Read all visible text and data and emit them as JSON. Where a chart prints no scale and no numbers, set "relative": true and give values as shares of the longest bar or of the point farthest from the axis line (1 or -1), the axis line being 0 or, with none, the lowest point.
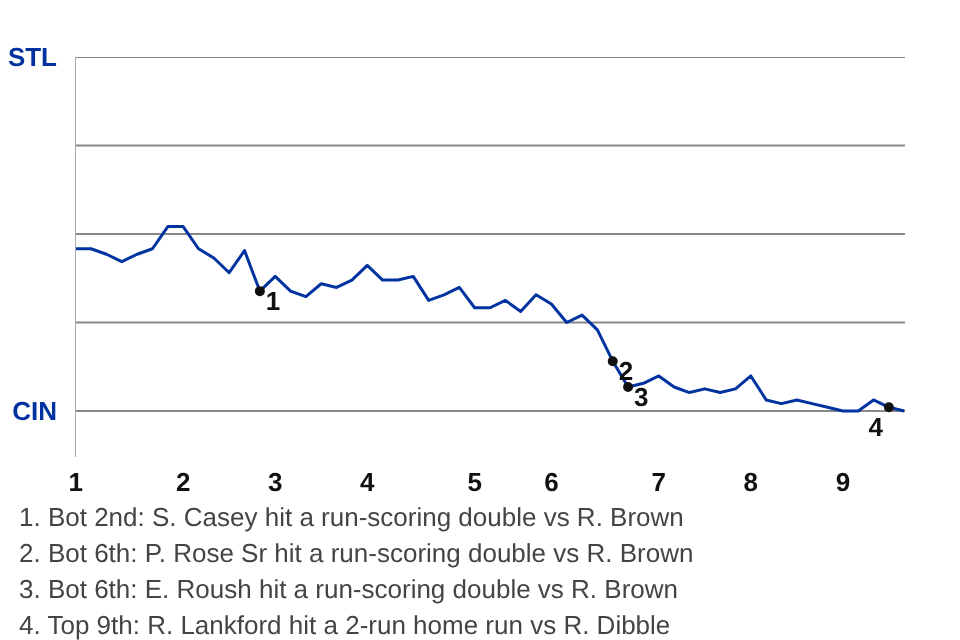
{
  "chart_data": {
    "type": "line",
    "relative": true,
    "categories": [
      "1",
      null,
      null,
      null,
      null,
      null,
      null,
      "2",
      null,
      null,
      null,
      null,
      null,
      "3",
      null,
      null,
      null,
      null,
      null,
      "4",
      null,
      null,
      null,
      null,
      null,
      null,
      "5",
      null,
      null,
      null,
      null,
      "6",
      null,
      null,
      null,
      null,
      null,
      null,
      "7",
      null,
      null,
      null,
      null,
      null,
      "8",
      null,
      null,
      null,
      null,
      null,
      "9",
      null,
      null,
      null,
      null
    ],
    "series": [
      {
        "color": "#0033a0",
        "values": [
          0.88,
          0.88,
          0.85,
          0.81,
          0.85,
          0.88,
          1,
          1,
          0.88,
          0.83,
          0.75,
          0.87,
          0.65,
          0.73,
          0.65,
          0.62,
          0.69,
          0.67,
          0.71,
          0.79,
          0.71,
          0.71,
          0.73,
          0.6,
          0.63,
          0.67,
          0.56,
          0.56,
          0.6,
          0.54,
          0.63,
          0.58,
          0.48,
          0.52,
          0.44,
          0.27,
          0.13,
          0.15,
          0.19,
          0.13,
          0.1,
          0.12,
          0.1,
          0.12,
          0.19,
          0.06,
          0.04,
          0.06,
          0.04,
          0.02,
          0,
          0,
          0.06,
          0.02,
          0
        ]
      },
      {
        "type": "scatter",
        "marker": "circle",
        "name": "1",
        "color": "#111111",
        "values": [
          null,
          null,
          null,
          null,
          null,
          null,
          null,
          null,
          null,
          null,
          null,
          null,
          0.65,
          null,
          null,
          null,
          null,
          null,
          null,
          null,
          null,
          null,
          null,
          null,
          null,
          null,
          null,
          null,
          null,
          null,
          null,
          null,
          null,
          null,
          null,
          null,
          null,
          null,
          null,
          null,
          null,
          null,
          null,
          null,
          null,
          null,
          null,
          null,
          null,
          null,
          null,
          null,
          null,
          null,
          null
        ]
      },
      {
        "type": "scatter",
        "marker": "circle",
        "name": "2",
        "color": "#111111",
        "values": [
          null,
          null,
          null,
          null,
          null,
          null,
          null,
          null,
          null,
          null,
          null,
          null,
          null,
          null,
          null,
          null,
          null,
          null,
          null,
          null,
          null,
          null,
          null,
          null,
          null,
          null,
          null,
          null,
          null,
          null,
          null,
          null,
          null,
          null,
          null,
          0.27,
          null,
          null,
          null,
          null,
          null,
          null,
          null,
          null,
          null,
          null,
          null,
          null,
          null,
          null,
          null,
          null,
          null,
          null,
          null
        ]
      },
      {
        "type": "scatter",
        "marker": "circle",
        "name": "3",
        "color": "#111111",
        "values": [
          null,
          null,
          null,
          null,
          null,
          null,
          null,
          null,
          null,
          null,
          null,
          null,
          null,
          null,
          null,
          null,
          null,
          null,
          null,
          null,
          null,
          null,
          null,
          null,
          null,
          null,
          null,
          null,
          null,
          null,
          null,
          null,
          null,
          null,
          null,
          null,
          0.13,
          null,
          null,
          null,
          null,
          null,
          null,
          null,
          null,
          null,
          null,
          null,
          null,
          null,
          null,
          null,
          null,
          null,
          null
        ]
      },
      {
        "type": "scatter",
        "marker": "circle",
        "name": "4",
        "color": "#111111",
        "values": [
          null,
          null,
          null,
          null,
          null,
          null,
          null,
          null,
          null,
          null,
          null,
          null,
          null,
          null,
          null,
          null,
          null,
          null,
          null,
          null,
          null,
          null,
          null,
          null,
          null,
          null,
          null,
          null,
          null,
          null,
          null,
          null,
          null,
          null,
          null,
          null,
          null,
          null,
          null,
          null,
          null,
          null,
          null,
          null,
          null,
          null,
          null,
          null,
          null,
          null,
          null,
          null,
          null,
          0.02,
          null
        ]
      }
    ],
    "ref_lines": [
      {
        "axis": "y",
        "value": 0,
        "color": "#888888"
      },
      {
        "axis": "y",
        "value": 0.48,
        "color": "#888888"
      },
      {
        "axis": "y",
        "value": 0.96,
        "color": "#888888"
      },
      {
        "axis": "y",
        "value": 1.44,
        "color": "#888888"
      },
      {
        "axis": "y",
        "value": 1.92,
        "color": "#888888"
      }
    ],
    "annotations": [
      "STL",
      "CIN",
      "1. Bot 2nd: S. Casey hit a run-scoring double vs R. Brown",
      "2. Bot 6th: P. Rose Sr hit a run-scoring double vs R. Brown",
      "3. Bot 6th: E. Roush hit a run-scoring double vs R. Brown",
      "4. Top 9th: R. Lankford hit a 2-run home run vs R. Dibble"
    ]
  }
}
